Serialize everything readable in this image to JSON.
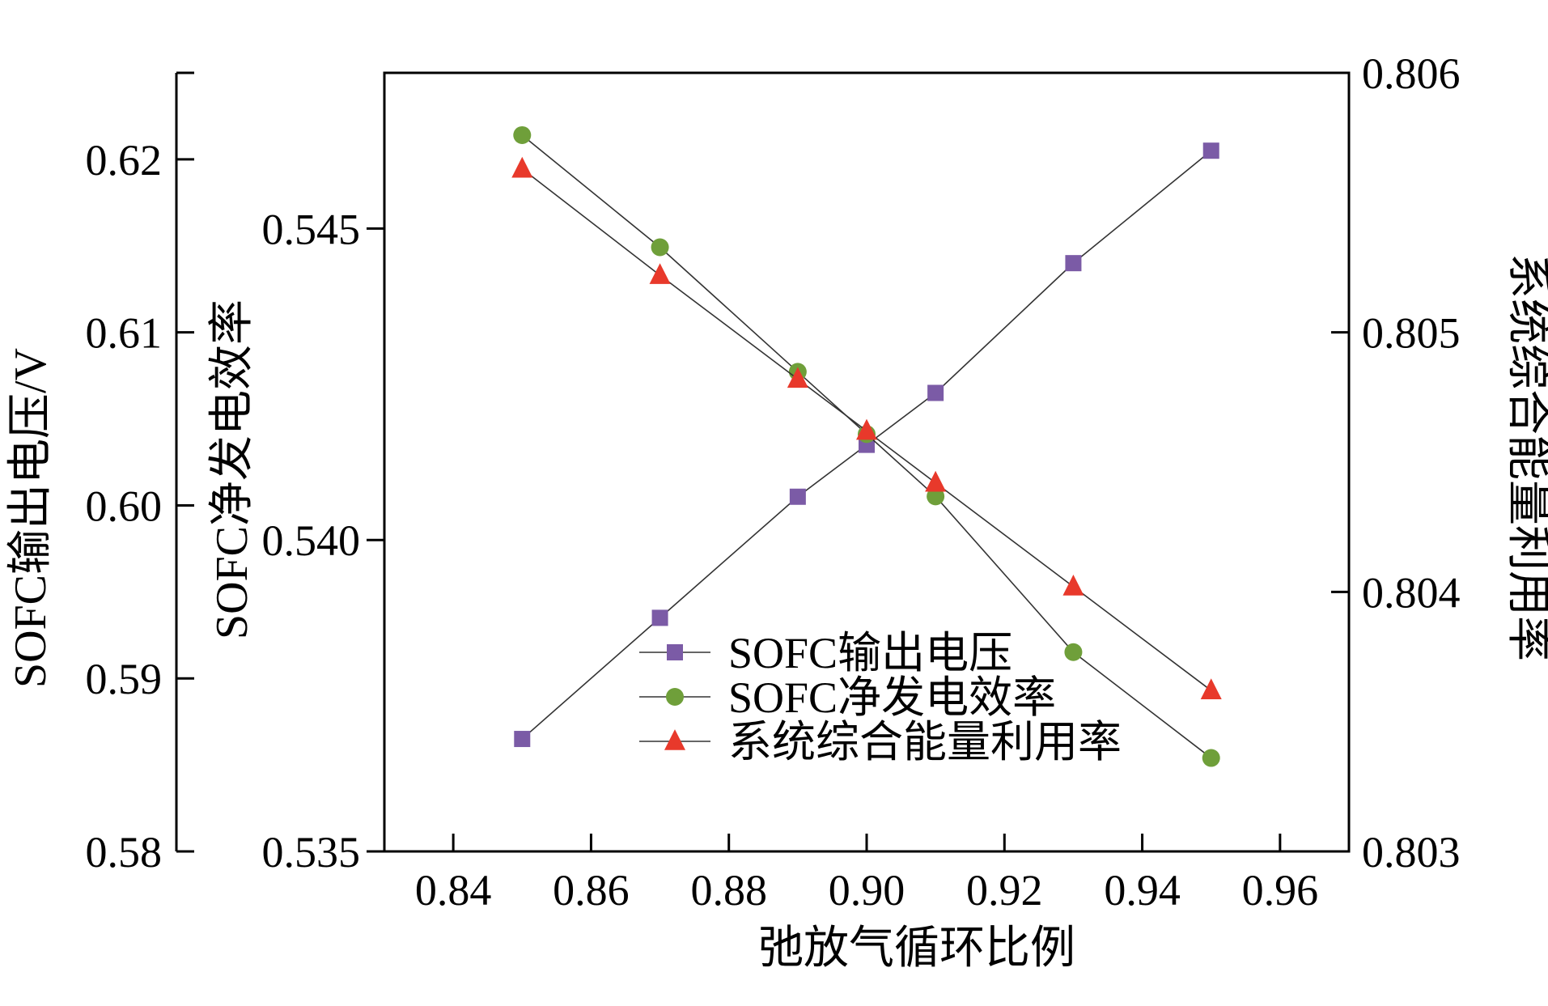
{
  "chart_data": {
    "type": "line",
    "title": "",
    "xlabel": "弛放气循环比例",
    "xlim": [
      0.83,
      0.97
    ],
    "xticks": [
      "0.84",
      "0.86",
      "0.88",
      "0.90",
      "0.92",
      "0.94",
      "0.96"
    ],
    "x": [
      0.85,
      0.87,
      0.89,
      0.9,
      0.91,
      0.93,
      0.95
    ],
    "axes": {
      "left_outer": {
        "label": "SOFC输出电压/V",
        "ylim": [
          0.58,
          0.625
        ],
        "ticks": [
          "0.58",
          "0.59",
          "0.60",
          "0.61",
          "0.62"
        ]
      },
      "left_inner": {
        "label": "SOFC净发电效率",
        "ylim": [
          0.535,
          0.5475
        ],
        "ticks": [
          "0.535",
          "0.540",
          "0.545"
        ]
      },
      "right": {
        "label": "系统综合能量利用率",
        "ylim": [
          0.803,
          0.806
        ],
        "ticks": [
          "0.803",
          "0.804",
          "0.805",
          "0.806"
        ]
      }
    },
    "series": [
      {
        "name": "SOFC输出电压",
        "axis": "left_outer",
        "marker": "square",
        "color": "#7b5ba6",
        "values": [
          0.5865,
          0.5935,
          0.6005,
          0.6035,
          0.6065,
          0.614,
          0.6205
        ]
      },
      {
        "name": "SOFC净发电效率",
        "axis": "left_inner",
        "marker": "circle",
        "color": "#6f9f3a",
        "values": [
          0.5465,
          0.5447,
          0.5427,
          0.5417,
          0.5407,
          0.5382,
          0.5365
        ]
      },
      {
        "name": "系统综合能量利用率",
        "axis": "right",
        "marker": "triangle",
        "color": "#e8392b",
        "values": [
          0.80563,
          0.80522,
          0.80482,
          0.80462,
          0.80442,
          0.80402,
          0.80362
        ]
      }
    ],
    "legend_position": "lower-center",
    "grid": false
  }
}
